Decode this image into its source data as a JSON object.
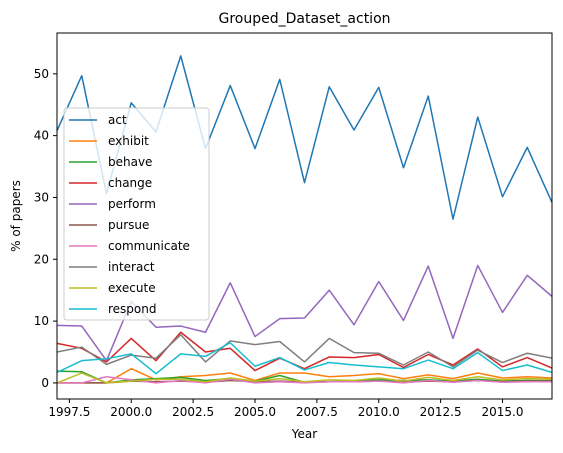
{
  "chart_data": {
    "type": "line",
    "title": "Grouped_Dataset_action",
    "xlabel": "Year",
    "ylabel": "% of papers",
    "xlim": [
      1997,
      2017
    ],
    "ylim": [
      -2.6,
      56.6
    ],
    "x": [
      1997,
      1998,
      1999,
      2000,
      2001,
      2002,
      2003,
      2004,
      2005,
      2006,
      2007,
      2008,
      2009,
      2010,
      2011,
      2012,
      2013,
      2014,
      2015,
      2016,
      2017
    ],
    "xticks": [
      1997.5,
      2000.0,
      2002.5,
      2005.0,
      2007.5,
      2010.0,
      2012.5,
      2015.0
    ],
    "xtick_labels": [
      "1997.5",
      "2000.0",
      "2002.5",
      "2005.0",
      "2007.5",
      "2010.0",
      "2012.5",
      "2015.0"
    ],
    "yticks": [
      0,
      10,
      20,
      30,
      40,
      50
    ],
    "ytick_labels": [
      "0",
      "10",
      "20",
      "30",
      "40",
      "50"
    ],
    "grid": false,
    "legend_position": "upper-left",
    "series": [
      {
        "name": "act",
        "color": "#1f77b4",
        "values": [
          40.8,
          49.7,
          30.6,
          45.3,
          40.6,
          52.9,
          37.9,
          48.1,
          37.9,
          49.1,
          32.4,
          47.9,
          40.9,
          47.8,
          34.8,
          46.4,
          26.5,
          43.0,
          30.1,
          38.1,
          29.2
        ]
      },
      {
        "name": "exhibit",
        "color": "#ff7f0e",
        "values": [
          0.0,
          0.0,
          0.0,
          2.3,
          0.5,
          1.0,
          1.2,
          1.6,
          0.4,
          1.6,
          1.6,
          1.0,
          1.2,
          1.5,
          0.7,
          1.3,
          0.7,
          1.6,
          0.8,
          1.0,
          0.8
        ]
      },
      {
        "name": "behave",
        "color": "#2ca02c",
        "values": [
          1.9,
          1.8,
          0.0,
          0.5,
          0.7,
          0.9,
          0.4,
          0.7,
          0.3,
          1.2,
          0.1,
          0.2,
          0.4,
          0.5,
          0.4,
          0.5,
          0.3,
          0.6,
          0.3,
          0.4,
          0.4
        ]
      },
      {
        "name": "change",
        "color": "#d62728",
        "values": [
          6.4,
          5.6,
          3.4,
          7.2,
          3.6,
          8.2,
          5.0,
          5.6,
          2.0,
          4.0,
          2.3,
          4.2,
          4.1,
          4.6,
          2.5,
          4.6,
          2.9,
          5.5,
          2.6,
          4.1,
          2.4
        ]
      },
      {
        "name": "perform",
        "color": "#9467bd",
        "values": [
          9.3,
          9.2,
          3.6,
          13.2,
          9.0,
          9.2,
          8.2,
          16.2,
          7.5,
          10.4,
          10.5,
          15.0,
          9.4,
          16.4,
          10.1,
          18.9,
          7.2,
          19.0,
          11.4,
          17.4,
          14.0
        ]
      },
      {
        "name": "pursue",
        "color": "#8c564b",
        "values": [
          0.0,
          0.0,
          0.0,
          0.3,
          0.2,
          0.3,
          0.1,
          0.4,
          0.2,
          0.3,
          0.1,
          0.2,
          0.2,
          0.3,
          0.1,
          0.3,
          0.2,
          0.4,
          0.2,
          0.3,
          0.3
        ]
      },
      {
        "name": "communicate",
        "color": "#e377c2",
        "values": [
          0.0,
          0.0,
          1.0,
          0.5,
          0.0,
          0.4,
          0.0,
          0.6,
          0.0,
          0.2,
          0.0,
          0.2,
          0.2,
          0.3,
          0.0,
          0.4,
          0.1,
          0.4,
          0.1,
          0.2,
          0.2
        ]
      },
      {
        "name": "interact",
        "color": "#7f7f7f",
        "values": [
          5.0,
          5.8,
          3.0,
          4.5,
          4.0,
          7.8,
          3.4,
          6.8,
          6.2,
          6.7,
          3.4,
          7.2,
          4.9,
          4.8,
          2.9,
          5.0,
          2.6,
          5.3,
          3.3,
          4.8,
          4.0
        ]
      },
      {
        "name": "execute",
        "color": "#bcbd22",
        "values": [
          0.0,
          1.6,
          0.0,
          0.3,
          0.6,
          0.6,
          0.2,
          0.8,
          0.3,
          0.7,
          0.2,
          0.5,
          0.4,
          0.8,
          0.3,
          0.9,
          0.4,
          1.0,
          0.5,
          0.7,
          0.6
        ]
      },
      {
        "name": "respond",
        "color": "#17becf",
        "values": [
          1.7,
          3.6,
          3.9,
          4.7,
          1.5,
          4.7,
          4.3,
          6.5,
          2.7,
          4.1,
          2.1,
          3.3,
          2.9,
          2.6,
          2.3,
          3.7,
          2.3,
          4.9,
          2.0,
          2.9,
          1.7
        ]
      }
    ]
  }
}
